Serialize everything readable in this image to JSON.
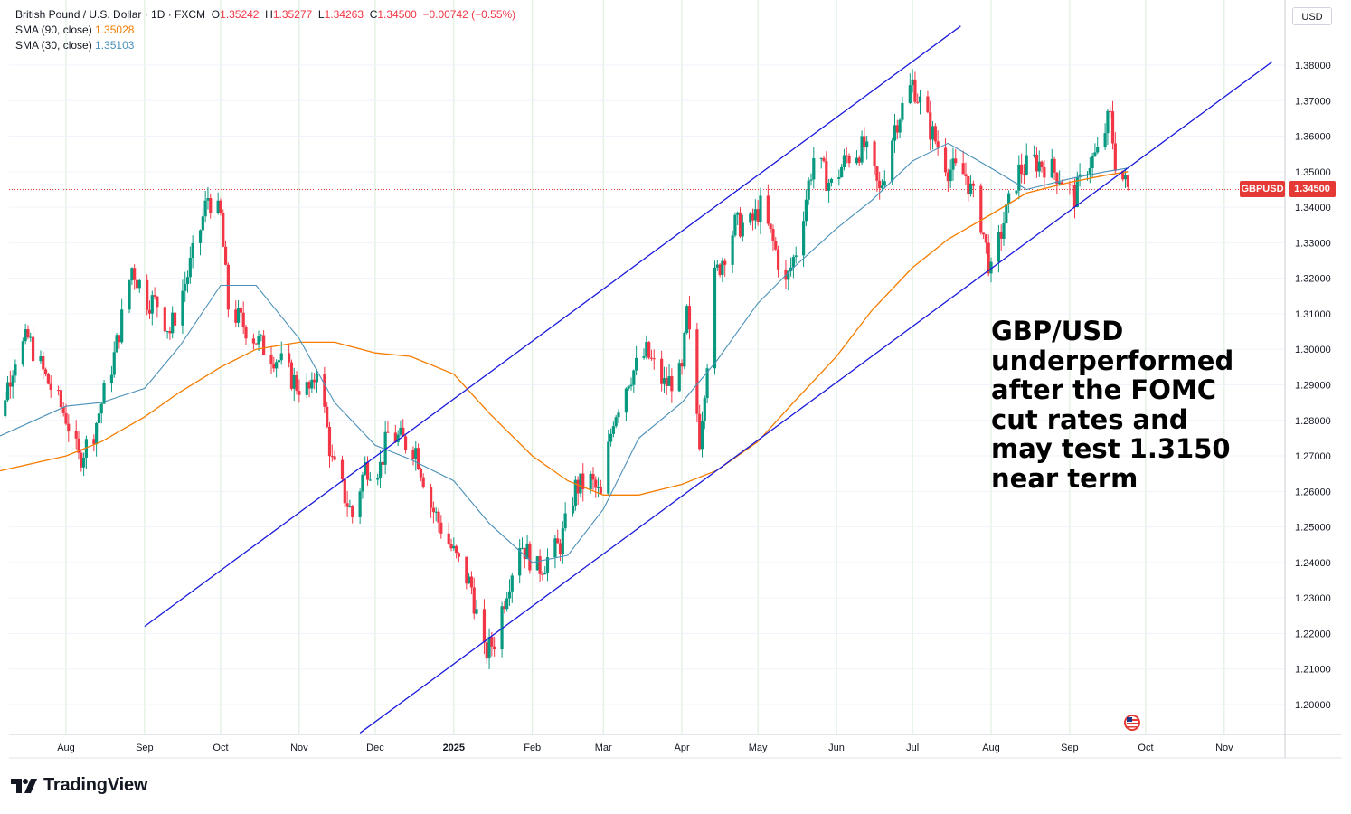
{
  "legend": {
    "title": "British Pound / U.S. Dollar · 1D · FXCM",
    "open_label": "O",
    "open": "1.35242",
    "high_label": "H",
    "high": "1.35277",
    "low_label": "L",
    "low": "1.34263",
    "close_label": "C",
    "close": "1.34500",
    "change": "−0.00742 (−0.55%)",
    "sma90_label": "SMA (90, close)",
    "sma90_value": "1.35028",
    "sma30_label": "SMA (30, close)",
    "sma30_value": "1.35103"
  },
  "currency_button": "USD",
  "price_tag": {
    "symbol": "GBPUSD",
    "price": "1.34500"
  },
  "annotation": "GBP/USD\nunderperformed\nafter the FOMC\ncut rates and\nmay test 1.3150\nnear term",
  "branding": "TradingView",
  "colors": {
    "up": "#089981",
    "down": "#f23645",
    "sma90": "#f57c00",
    "sma30": "#4a90b8",
    "channel": "#1a1adb",
    "grid": "#d8ecd8",
    "price_line": "#e53935"
  },
  "chart_data": {
    "type": "candlestick",
    "symbol": "GBPUSD",
    "timeframe": "1D",
    "y_ticks": [
      1.2,
      1.21,
      1.22,
      1.23,
      1.24,
      1.25,
      1.26,
      1.27,
      1.28,
      1.29,
      1.3,
      1.31,
      1.32,
      1.33,
      1.34,
      1.35,
      1.36,
      1.37,
      1.38
    ],
    "y_tick_labels": [
      "1.20000",
      "1.21000",
      "1.22000",
      "1.23000",
      "1.24000",
      "1.25000",
      "1.26000",
      "1.27000",
      "1.28000",
      "1.29000",
      "1.30000",
      "1.31000",
      "1.32000",
      "1.33000",
      "1.34000",
      "1.35000",
      "1.36000",
      "1.37000",
      "1.38000"
    ],
    "x_ticks": [
      {
        "label": "Aug",
        "date": "2024-08-01",
        "bold": false
      },
      {
        "label": "Sep",
        "date": "2024-09-01",
        "bold": false
      },
      {
        "label": "Oct",
        "date": "2024-10-01",
        "bold": false
      },
      {
        "label": "Nov",
        "date": "2024-11-01",
        "bold": false
      },
      {
        "label": "Dec",
        "date": "2024-12-01",
        "bold": false
      },
      {
        "label": "2025",
        "date": "2025-01-01",
        "bold": true
      },
      {
        "label": "Feb",
        "date": "2025-02-01",
        "bold": false
      },
      {
        "label": "Mar",
        "date": "2025-03-01",
        "bold": false
      },
      {
        "label": "Apr",
        "date": "2025-04-01",
        "bold": false
      },
      {
        "label": "May",
        "date": "2025-05-01",
        "bold": false
      },
      {
        "label": "Jun",
        "date": "2025-06-01",
        "bold": false
      },
      {
        "label": "Jul",
        "date": "2025-07-01",
        "bold": false
      },
      {
        "label": "Aug",
        "date": "2025-08-01",
        "bold": false
      },
      {
        "label": "Sep",
        "date": "2025-09-01",
        "bold": false
      },
      {
        "label": "Oct",
        "date": "2025-10-01",
        "bold": false
      },
      {
        "label": "Nov",
        "date": "2025-11-01",
        "bold": false
      }
    ],
    "close_path": [
      [
        "2024-07-01",
        1.268
      ],
      [
        "2024-07-05",
        1.28
      ],
      [
        "2024-07-12",
        1.298
      ],
      [
        "2024-07-17",
        1.303
      ],
      [
        "2024-07-24",
        1.292
      ],
      [
        "2024-08-01",
        1.281
      ],
      [
        "2024-08-06",
        1.269
      ],
      [
        "2024-08-12",
        1.277
      ],
      [
        "2024-08-20",
        1.298
      ],
      [
        "2024-08-27",
        1.323
      ],
      [
        "2024-09-02",
        1.314
      ],
      [
        "2024-09-06",
        1.313
      ],
      [
        "2024-09-11",
        1.305
      ],
      [
        "2024-09-18",
        1.321
      ],
      [
        "2024-09-23",
        1.334
      ],
      [
        "2024-09-26",
        1.343
      ],
      [
        "2024-10-01",
        1.337
      ],
      [
        "2024-10-04",
        1.312
      ],
      [
        "2024-10-10",
        1.307
      ],
      [
        "2024-10-17",
        1.301
      ],
      [
        "2024-10-24",
        1.297
      ],
      [
        "2024-10-31",
        1.29
      ],
      [
        "2024-11-06",
        1.288
      ],
      [
        "2024-11-08",
        1.296
      ],
      [
        "2024-11-14",
        1.268
      ],
      [
        "2024-11-22",
        1.253
      ],
      [
        "2024-11-27",
        1.267
      ],
      [
        "2024-12-03",
        1.267
      ],
      [
        "2024-12-06",
        1.276
      ],
      [
        "2024-12-10",
        1.275
      ],
      [
        "2024-12-17",
        1.272
      ],
      [
        "2024-12-23",
        1.256
      ],
      [
        "2025-01-02",
        1.241
      ],
      [
        "2025-01-08",
        1.233
      ],
      [
        "2025-01-13",
        1.214
      ],
      [
        "2025-01-17",
        1.218
      ],
      [
        "2025-01-22",
        1.233
      ],
      [
        "2025-01-27",
        1.246
      ],
      [
        "2025-02-03",
        1.238
      ],
      [
        "2025-02-07",
        1.241
      ],
      [
        "2025-02-12",
        1.245
      ],
      [
        "2025-02-18",
        1.261
      ],
      [
        "2025-02-24",
        1.263
      ],
      [
        "2025-02-28",
        1.258
      ],
      [
        "2025-03-05",
        1.281
      ],
      [
        "2025-03-11",
        1.292
      ],
      [
        "2025-03-18",
        1.299
      ],
      [
        "2025-03-25",
        1.29
      ],
      [
        "2025-04-01",
        1.293
      ],
      [
        "2025-04-03",
        1.31
      ],
      [
        "2025-04-08",
        1.275
      ],
      [
        "2025-04-14",
        1.32
      ],
      [
        "2025-04-22",
        1.335
      ],
      [
        "2025-04-28",
        1.335
      ],
      [
        "2025-05-02",
        1.34
      ],
      [
        "2025-05-07",
        1.33
      ],
      [
        "2025-05-12",
        1.318
      ],
      [
        "2025-05-16",
        1.328
      ],
      [
        "2025-05-23",
        1.354
      ],
      [
        "2025-05-30",
        1.346
      ],
      [
        "2025-06-05",
        1.354
      ],
      [
        "2025-06-12",
        1.357
      ],
      [
        "2025-06-18",
        1.344
      ],
      [
        "2025-06-24",
        1.363
      ],
      [
        "2025-07-01",
        1.375
      ],
      [
        "2025-07-08",
        1.362
      ],
      [
        "2025-07-15",
        1.351
      ],
      [
        "2025-07-22",
        1.349
      ],
      [
        "2025-07-28",
        1.336
      ],
      [
        "2025-08-01",
        1.321
      ],
      [
        "2025-08-06",
        1.336
      ],
      [
        "2025-08-12",
        1.35
      ],
      [
        "2025-08-18",
        1.353
      ],
      [
        "2025-08-22",
        1.352
      ],
      [
        "2025-08-28",
        1.349
      ],
      [
        "2025-09-03",
        1.343
      ],
      [
        "2025-09-08",
        1.352
      ],
      [
        "2025-09-12",
        1.355
      ],
      [
        "2025-09-16",
        1.364
      ],
      [
        "2025-09-17",
        1.365
      ],
      [
        "2025-09-19",
        1.353
      ],
      [
        "2025-09-22",
        1.348
      ],
      [
        "2025-09-24",
        1.345
      ]
    ],
    "sma30": [
      [
        "2024-07-01",
        1.274
      ],
      [
        "2024-08-01",
        1.284
      ],
      [
        "2024-08-15",
        1.285
      ],
      [
        "2024-09-01",
        1.289
      ],
      [
        "2024-09-15",
        1.301
      ],
      [
        "2024-10-01",
        1.318
      ],
      [
        "2024-10-15",
        1.318
      ],
      [
        "2024-11-01",
        1.303
      ],
      [
        "2024-11-15",
        1.285
      ],
      [
        "2024-12-01",
        1.273
      ],
      [
        "2024-12-15",
        1.269
      ],
      [
        "2025-01-01",
        1.263
      ],
      [
        "2025-01-15",
        1.251
      ],
      [
        "2025-02-01",
        1.24
      ],
      [
        "2025-02-15",
        1.242
      ],
      [
        "2025-03-01",
        1.255
      ],
      [
        "2025-03-15",
        1.275
      ],
      [
        "2025-04-01",
        1.285
      ],
      [
        "2025-04-15",
        1.297
      ],
      [
        "2025-05-01",
        1.313
      ],
      [
        "2025-05-15",
        1.323
      ],
      [
        "2025-06-01",
        1.334
      ],
      [
        "2025-06-15",
        1.342
      ],
      [
        "2025-07-01",
        1.353
      ],
      [
        "2025-07-15",
        1.358
      ],
      [
        "2025-08-01",
        1.351
      ],
      [
        "2025-08-15",
        1.345
      ],
      [
        "2025-09-01",
        1.348
      ],
      [
        "2025-09-15",
        1.35
      ],
      [
        "2025-09-24",
        1.351
      ]
    ],
    "sma90": [
      [
        "2024-07-01",
        1.265
      ],
      [
        "2024-08-01",
        1.27
      ],
      [
        "2024-08-15",
        1.274
      ],
      [
        "2024-09-01",
        1.281
      ],
      [
        "2024-09-15",
        1.288
      ],
      [
        "2024-10-01",
        1.295
      ],
      [
        "2024-10-15",
        1.3
      ],
      [
        "2024-11-01",
        1.302
      ],
      [
        "2024-11-15",
        1.302
      ],
      [
        "2024-12-01",
        1.299
      ],
      [
        "2024-12-15",
        1.298
      ],
      [
        "2025-01-01",
        1.293
      ],
      [
        "2025-01-15",
        1.282
      ],
      [
        "2025-02-01",
        1.27
      ],
      [
        "2025-02-15",
        1.263
      ],
      [
        "2025-03-01",
        1.259
      ],
      [
        "2025-03-15",
        1.259
      ],
      [
        "2025-04-01",
        1.262
      ],
      [
        "2025-04-15",
        1.266
      ],
      [
        "2025-05-01",
        1.274
      ],
      [
        "2025-05-15",
        1.285
      ],
      [
        "2025-06-01",
        1.298
      ],
      [
        "2025-06-15",
        1.311
      ],
      [
        "2025-07-01",
        1.323
      ],
      [
        "2025-07-15",
        1.331
      ],
      [
        "2025-08-01",
        1.338
      ],
      [
        "2025-08-15",
        1.344
      ],
      [
        "2025-09-01",
        1.347
      ],
      [
        "2025-09-15",
        1.349
      ],
      [
        "2025-09-24",
        1.35
      ]
    ],
    "channel_upper": [
      [
        "2024-09-01",
        1.222
      ],
      [
        "2025-07-20",
        1.391
      ]
    ],
    "channel_lower": [
      [
        "2024-11-25",
        1.192
      ],
      [
        "2025-11-20",
        1.381
      ]
    ],
    "last_price": 1.345,
    "ylim": [
      1.192,
      1.391
    ]
  }
}
